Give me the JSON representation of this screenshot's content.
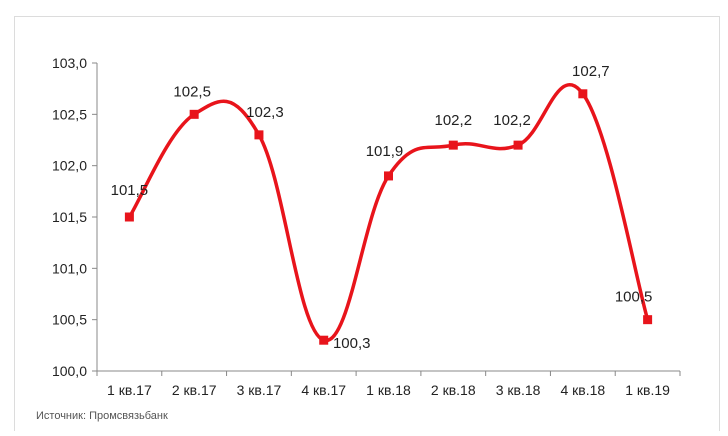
{
  "chart_data": {
    "type": "line",
    "categories": [
      "1 кв.17",
      "2 кв.17",
      "3 кв.17",
      "4 кв.17",
      "1 кв.18",
      "2 кв.18",
      "3 кв.18",
      "4 кв.18",
      "1 кв.19"
    ],
    "values": [
      101.5,
      102.5,
      102.3,
      100.3,
      101.9,
      102.2,
      102.2,
      102.7,
      100.5
    ],
    "data_labels": [
      "101,5",
      "102,5",
      "102,3",
      "100,3",
      "101,9",
      "102,2",
      "102,2",
      "102,7",
      "100,5"
    ],
    "yticks": [
      "100,0",
      "100,5",
      "101,0",
      "101,5",
      "102,0",
      "102,5",
      "103,0"
    ],
    "ylim": [
      100.0,
      103.0
    ],
    "ystep": 0.5,
    "grid": false,
    "line_style": "smooth",
    "colors": {
      "line": "#e8141b",
      "marker": "#e8141b"
    },
    "source": "Источник: Промсвязьбанк"
  }
}
